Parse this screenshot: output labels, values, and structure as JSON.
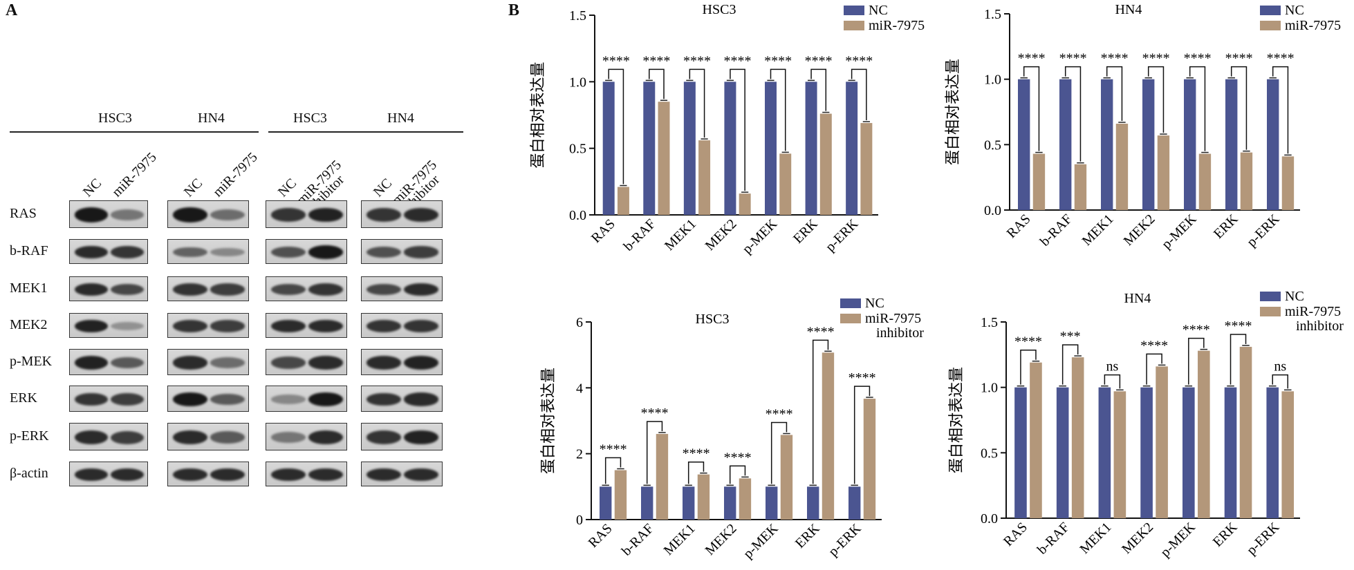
{
  "panels": {
    "a": "A",
    "b": "B"
  },
  "blot": {
    "cell_lines": [
      "HSC3",
      "HN4",
      "HSC3",
      "HN4"
    ],
    "lanes": {
      "hsc3_mimic": [
        "NC",
        "miR-7975"
      ],
      "hn4_mimic": [
        "NC",
        "miR-7975"
      ],
      "hsc3_inh": [
        "NC",
        "miR-7975 inhibitor"
      ],
      "hn4_inh": [
        "NC",
        "miR-7975 inhibitor"
      ]
    },
    "rows": [
      "RAS",
      "b-RAF",
      "MEK1",
      "MEK2",
      "p-MEK",
      "ERK",
      "p-ERK",
      "β-actin"
    ]
  },
  "colors": {
    "nc": "#4b5591",
    "treat": "#b3977a"
  },
  "chart_data": [
    {
      "type": "bar",
      "title": "HSC3",
      "ylabel": "蛋白相对表达量",
      "categories": [
        "RAS",
        "b-RAF",
        "MEK1",
        "MEK2",
        "p-MEK",
        "ERK",
        "p-ERK"
      ],
      "ylim": [
        0,
        1.5
      ],
      "yticks": [
        "0.0",
        "0.5",
        "1.0",
        "1.5"
      ],
      "series": [
        {
          "name": "NC",
          "values": [
            1.0,
            1.0,
            1.0,
            1.0,
            1.0,
            1.0,
            1.0
          ]
        },
        {
          "name": "miR-7975",
          "values": [
            0.21,
            0.85,
            0.56,
            0.16,
            0.46,
            0.76,
            0.69
          ]
        }
      ],
      "significance": [
        "****",
        "****",
        "****",
        "****",
        "****",
        "****",
        "****"
      ]
    },
    {
      "type": "bar",
      "title": "HN4",
      "ylabel": "蛋白相对表达量",
      "categories": [
        "RAS",
        "b-RAF",
        "MEK1",
        "MEK2",
        "p-MEK",
        "ERK",
        "p-ERK"
      ],
      "ylim": [
        0,
        1.5
      ],
      "yticks": [
        "0.0",
        "0.5",
        "1.0",
        "1.5"
      ],
      "series": [
        {
          "name": "NC",
          "values": [
            1.0,
            1.0,
            1.0,
            1.0,
            1.0,
            1.0,
            1.0
          ]
        },
        {
          "name": "miR-7975",
          "values": [
            0.43,
            0.35,
            0.66,
            0.57,
            0.43,
            0.44,
            0.41
          ]
        }
      ],
      "significance": [
        "****",
        "****",
        "****",
        "****",
        "****",
        "****",
        "****"
      ]
    },
    {
      "type": "bar",
      "title": "HSC3",
      "ylabel": "蛋白相对表达量",
      "categories": [
        "RAS",
        "b-RAF",
        "MEK1",
        "MEK2",
        "p-MEK",
        "ERK",
        "p-ERK"
      ],
      "ylim": [
        0,
        6
      ],
      "yticks": [
        "0",
        "2",
        "4",
        "6"
      ],
      "series": [
        {
          "name": "NC",
          "values": [
            1.0,
            1.0,
            1.0,
            1.0,
            1.0,
            1.0,
            1.0
          ]
        },
        {
          "name": "miR-7975 inhibitor",
          "values": [
            1.5,
            2.6,
            1.37,
            1.25,
            2.57,
            5.07,
            3.67
          ]
        }
      ],
      "significance": [
        "****",
        "****",
        "****",
        "****",
        "****",
        "****",
        "****"
      ]
    },
    {
      "type": "bar",
      "title": "HN4",
      "ylabel": "蛋白相对表达量",
      "categories": [
        "RAS",
        "b-RAF",
        "MEK1",
        "MEK2",
        "p-MEK",
        "ERK",
        "p-ERK"
      ],
      "ylim": [
        0,
        1.5
      ],
      "yticks": [
        "0.0",
        "0.5",
        "1.0",
        "1.5"
      ],
      "series": [
        {
          "name": "NC",
          "values": [
            1.0,
            1.0,
            1.0,
            1.0,
            1.0,
            1.0,
            1.0
          ]
        },
        {
          "name": "miR-7975 inhibitor",
          "values": [
            1.19,
            1.23,
            0.97,
            1.16,
            1.28,
            1.31,
            0.97
          ]
        }
      ],
      "significance": [
        "****",
        "***",
        "ns",
        "****",
        "****",
        "****",
        "ns"
      ]
    }
  ]
}
